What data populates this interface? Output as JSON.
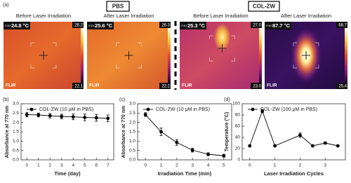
{
  "panel_a": {
    "label": "(a)",
    "groups": [
      "PBS",
      "COL-ZW"
    ],
    "images": [
      {
        "caption": "Before Laser Irradiation",
        "max_tag": "max",
        "temp": "24.8 °C",
        "scale_max": "26.2",
        "scale_min": "22.1",
        "logo": "FLIR"
      },
      {
        "caption": "After Laser Irradiation",
        "max_tag": "max",
        "temp": "25.6 °C",
        "scale_max": "26.3",
        "scale_min": "22.2",
        "logo": "FLIR"
      },
      {
        "caption": "Before Laser Irradiation",
        "max_tag": "max",
        "temp": "25.3 °C",
        "scale_max": "27.0",
        "scale_min": "23.0",
        "logo": "FLIR"
      },
      {
        "caption": "After Laser Irradiation",
        "max_tag": "max",
        "temp": "87.7 °C",
        "scale_max": "68.7",
        "scale_min": "25.4",
        "logo": "FLIR"
      }
    ]
  },
  "chart_data": [
    {
      "type": "line",
      "label": "(b)",
      "xlabel": "Time (day)",
      "ylabel": "Absorbance at 770 nm",
      "x": [
        0,
        1,
        2,
        3,
        4,
        5,
        6,
        7
      ],
      "series": [
        {
          "name": "COL-ZW (10 μM in PBS)",
          "color": "#000000",
          "values": [
            2.42,
            2.4,
            2.36,
            2.32,
            2.3,
            2.27,
            2.25,
            2.22
          ],
          "errors": [
            0.12,
            0.1,
            0.12,
            0.12,
            0.15,
            0.18,
            0.18,
            0.18
          ]
        }
      ],
      "xlim": [
        -0.5,
        7.5
      ],
      "xticks": [
        0,
        1,
        2,
        3,
        4,
        5,
        6,
        7
      ],
      "ylim": [
        0,
        3
      ],
      "yticks": [
        {
          "value": 0,
          "label": "0.0"
        },
        0.5,
        {
          "value": 1,
          "label": "1.0"
        },
        1.5,
        {
          "value": 2,
          "label": "2.0"
        },
        2.5,
        {
          "value": 3,
          "label": "3.0"
        }
      ]
    },
    {
      "type": "line",
      "label": "(c)",
      "xlabel": "Irradiation Time (min)",
      "ylabel": "Absorbance at 770 nm",
      "x": [
        0,
        1,
        2,
        3,
        4,
        5
      ],
      "series": [
        {
          "name": "COL-ZW (10 μM in PBS)",
          "color": "#000000",
          "values": [
            2.42,
            1.5,
            0.93,
            0.52,
            0.3,
            0.22
          ],
          "errors": [
            0.1,
            0.2,
            0.15,
            0.1,
            0.08,
            0.08
          ]
        }
      ],
      "xlim": [
        -0.5,
        5.5
      ],
      "xticks": [
        0,
        1,
        2,
        3,
        4,
        5
      ],
      "ylim": [
        0,
        3
      ],
      "yticks": [
        {
          "value": 0,
          "label": "0.0"
        },
        0.5,
        {
          "value": 1,
          "label": "1.0"
        },
        1.5,
        {
          "value": 2,
          "label": "2.0"
        },
        2.5,
        {
          "value": 3,
          "label": "3.0"
        }
      ]
    },
    {
      "type": "line",
      "label": "(d)",
      "xlabel": "Laser Irradiation Cycles",
      "ylabel": "Temperature (°C)",
      "x": [
        0,
        0.5,
        1,
        2,
        2.5,
        3,
        3.5
      ],
      "series": [
        {
          "name": "COL-ZW (100 μM in PBS)",
          "color": "#000000",
          "values": [
            25,
            87,
            25,
            44,
            25,
            30,
            25
          ],
          "errors": [
            1,
            3,
            1,
            4,
            1,
            2,
            1
          ]
        }
      ],
      "xlim": [
        -0.3,
        3.8
      ],
      "xticks": [
        0,
        1,
        2,
        3
      ],
      "ylim": [
        0,
        100
      ],
      "yticks": [
        0,
        20,
        40,
        60,
        80,
        100
      ]
    }
  ]
}
